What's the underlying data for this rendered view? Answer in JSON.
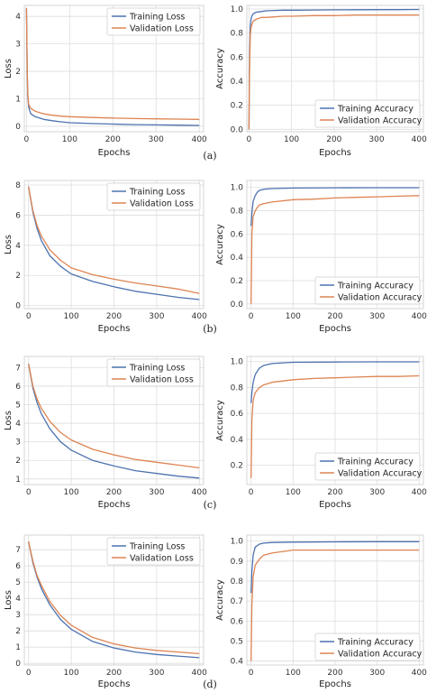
{
  "colors": {
    "training": "#4C72B0",
    "validation": "#DD8452",
    "grid": "#dddddd",
    "frame": "#cccccc"
  },
  "chart_data": [
    {
      "type": "line",
      "panel": "(a)",
      "metric": "loss",
      "xlabel": "Epochs",
      "ylabel": "Loss",
      "xlim": [
        -5,
        410
      ],
      "ylim": [
        -0.2,
        4.4
      ],
      "xticks": [
        0,
        100,
        200,
        300,
        400
      ],
      "yticks": [
        0,
        1,
        2,
        3,
        4
      ],
      "legend_loc": "top-right",
      "series": [
        {
          "name": "Training Loss",
          "x": [
            0,
            1,
            2,
            3,
            5,
            8,
            10,
            15,
            20,
            30,
            40,
            60,
            80,
            100,
            150,
            200,
            250,
            300,
            350,
            400
          ],
          "y": [
            4.3,
            2.8,
            1.7,
            1.1,
            0.7,
            0.55,
            0.45,
            0.4,
            0.35,
            0.3,
            0.25,
            0.2,
            0.16,
            0.13,
            0.1,
            0.08,
            0.06,
            0.05,
            0.04,
            0.03
          ]
        },
        {
          "name": "Validation Loss",
          "x": [
            0,
            1,
            2,
            3,
            5,
            8,
            10,
            15,
            20,
            30,
            40,
            60,
            80,
            100,
            150,
            200,
            250,
            300,
            350,
            400
          ],
          "y": [
            4.3,
            2.9,
            1.8,
            1.2,
            0.8,
            0.7,
            0.65,
            0.6,
            0.55,
            0.5,
            0.45,
            0.4,
            0.37,
            0.35,
            0.32,
            0.3,
            0.28,
            0.27,
            0.26,
            0.25
          ]
        }
      ]
    },
    {
      "type": "line",
      "panel": "(a)",
      "metric": "accuracy",
      "xlabel": "Epochs",
      "ylabel": "Accuracy",
      "xlim": [
        -5,
        410
      ],
      "ylim": [
        -0.02,
        1.03
      ],
      "xticks": [
        0,
        100,
        200,
        300,
        400
      ],
      "yticks": [
        0.0,
        0.2,
        0.4,
        0.6,
        0.8,
        1.0
      ],
      "legend_loc": "bottom-right",
      "series": [
        {
          "name": "Training Accuracy",
          "x": [
            0,
            1,
            2,
            3,
            5,
            8,
            10,
            15,
            20,
            30,
            40,
            60,
            80,
            100,
            150,
            200,
            250,
            300,
            350,
            400
          ],
          "y": [
            0.0,
            0.45,
            0.7,
            0.85,
            0.92,
            0.95,
            0.96,
            0.97,
            0.975,
            0.98,
            0.985,
            0.988,
            0.99,
            0.99,
            0.992,
            0.993,
            0.994,
            0.995,
            0.995,
            0.996
          ]
        },
        {
          "name": "Validation Accuracy",
          "x": [
            0,
            1,
            2,
            3,
            5,
            8,
            10,
            15,
            20,
            30,
            40,
            60,
            80,
            100,
            150,
            200,
            250,
            300,
            350,
            400
          ],
          "y": [
            0.0,
            0.4,
            0.6,
            0.78,
            0.85,
            0.88,
            0.9,
            0.91,
            0.92,
            0.93,
            0.93,
            0.935,
            0.94,
            0.94,
            0.945,
            0.945,
            0.95,
            0.95,
            0.95,
            0.95
          ]
        }
      ]
    },
    {
      "type": "line",
      "panel": "(b)",
      "metric": "loss",
      "xlabel": "Epochs",
      "ylabel": "Loss",
      "xlim": [
        -10,
        410
      ],
      "ylim": [
        -0.2,
        8.3
      ],
      "xticks": [
        0,
        100,
        200,
        300,
        400
      ],
      "yticks": [
        0,
        2,
        4,
        6,
        8
      ],
      "legend_loc": "top-right",
      "series": [
        {
          "name": "Training Loss",
          "x": [
            0,
            10,
            20,
            30,
            50,
            75,
            100,
            150,
            200,
            250,
            300,
            350,
            400
          ],
          "y": [
            7.9,
            6.2,
            5.1,
            4.3,
            3.3,
            2.6,
            2.1,
            1.6,
            1.25,
            0.95,
            0.75,
            0.55,
            0.4
          ]
        },
        {
          "name": "Validation Loss",
          "x": [
            0,
            10,
            20,
            30,
            50,
            75,
            100,
            150,
            200,
            250,
            300,
            350,
            400
          ],
          "y": [
            7.9,
            6.3,
            5.3,
            4.6,
            3.7,
            3.0,
            2.5,
            2.05,
            1.75,
            1.5,
            1.3,
            1.1,
            0.8
          ]
        }
      ]
    },
    {
      "type": "line",
      "panel": "(b)",
      "metric": "accuracy",
      "xlabel": "Epochs",
      "ylabel": "Accuracy",
      "xlim": [
        -10,
        410
      ],
      "ylim": [
        -0.04,
        1.06
      ],
      "xticks": [
        0,
        100,
        200,
        300,
        400
      ],
      "yticks": [
        0.0,
        0.2,
        0.4,
        0.6,
        0.8,
        1.0
      ],
      "legend_loc": "bottom-right",
      "series": [
        {
          "name": "Training Accuracy",
          "x": [
            0,
            2,
            5,
            10,
            15,
            20,
            30,
            50,
            100,
            200,
            300,
            400
          ],
          "y": [
            0.67,
            0.78,
            0.88,
            0.93,
            0.96,
            0.975,
            0.985,
            0.99,
            0.995,
            0.997,
            0.998,
            0.998
          ]
        },
        {
          "name": "Validation Accuracy",
          "x": [
            0,
            2,
            5,
            10,
            15,
            20,
            30,
            50,
            100,
            150,
            200,
            250,
            300,
            350,
            400
          ],
          "y": [
            0.0,
            0.6,
            0.75,
            0.8,
            0.83,
            0.85,
            0.86,
            0.875,
            0.895,
            0.9,
            0.91,
            0.915,
            0.92,
            0.925,
            0.93
          ]
        }
      ]
    },
    {
      "type": "line",
      "panel": "(c)",
      "metric": "loss",
      "xlabel": "Epochs",
      "ylabel": "Loss",
      "xlim": [
        -10,
        410
      ],
      "ylim": [
        0.7,
        7.6
      ],
      "xticks": [
        0,
        100,
        200,
        300,
        400
      ],
      "yticks": [
        1,
        2,
        3,
        4,
        5,
        6,
        7
      ],
      "legend_loc": "top-right",
      "series": [
        {
          "name": "Training Loss",
          "x": [
            0,
            10,
            20,
            30,
            50,
            75,
            100,
            150,
            200,
            250,
            300,
            350,
            400
          ],
          "y": [
            7.2,
            5.9,
            5.1,
            4.5,
            3.7,
            3.0,
            2.55,
            2.0,
            1.7,
            1.45,
            1.3,
            1.15,
            1.05
          ]
        },
        {
          "name": "Validation Loss",
          "x": [
            0,
            10,
            20,
            30,
            50,
            75,
            100,
            150,
            200,
            250,
            300,
            350,
            400
          ],
          "y": [
            7.2,
            6.0,
            5.3,
            4.8,
            4.1,
            3.5,
            3.1,
            2.6,
            2.3,
            2.05,
            1.9,
            1.75,
            1.6
          ]
        }
      ]
    },
    {
      "type": "line",
      "panel": "(c)",
      "metric": "accuracy",
      "xlabel": "Epochs",
      "ylabel": "Accuracy",
      "xlim": [
        -10,
        410
      ],
      "ylim": [
        0.05,
        1.04
      ],
      "xticks": [
        0,
        100,
        200,
        300,
        400
      ],
      "yticks": [
        0.2,
        0.4,
        0.6,
        0.8,
        1.0
      ],
      "legend_loc": "bottom-right",
      "series": [
        {
          "name": "Training Accuracy",
          "x": [
            0,
            2,
            5,
            10,
            20,
            30,
            50,
            100,
            200,
            300,
            400
          ],
          "y": [
            0.68,
            0.76,
            0.84,
            0.9,
            0.95,
            0.97,
            0.985,
            0.995,
            0.997,
            0.998,
            0.998
          ]
        },
        {
          "name": "Validation Accuracy",
          "x": [
            0,
            2,
            5,
            10,
            20,
            30,
            50,
            100,
            150,
            200,
            250,
            300,
            350,
            400
          ],
          "y": [
            0.1,
            0.55,
            0.7,
            0.76,
            0.8,
            0.82,
            0.84,
            0.86,
            0.87,
            0.875,
            0.88,
            0.885,
            0.885,
            0.89
          ]
        }
      ]
    },
    {
      "type": "line",
      "panel": "(d)",
      "metric": "loss",
      "xlabel": "Epochs",
      "ylabel": "Loss",
      "xlim": [
        -10,
        410
      ],
      "ylim": [
        -0.1,
        7.9
      ],
      "xticks": [
        0,
        100,
        200,
        300,
        400
      ],
      "yticks": [
        0,
        1,
        2,
        3,
        4,
        5,
        6,
        7
      ],
      "legend_loc": "top-right",
      "series": [
        {
          "name": "Training Loss",
          "x": [
            0,
            10,
            20,
            30,
            50,
            75,
            100,
            150,
            200,
            250,
            300,
            350,
            400
          ],
          "y": [
            7.5,
            6.2,
            5.3,
            4.6,
            3.6,
            2.7,
            2.1,
            1.35,
            0.95,
            0.7,
            0.55,
            0.45,
            0.35
          ]
        },
        {
          "name": "Validation Loss",
          "x": [
            0,
            10,
            20,
            30,
            50,
            75,
            100,
            150,
            200,
            250,
            300,
            350,
            400
          ],
          "y": [
            7.5,
            6.3,
            5.4,
            4.8,
            3.8,
            2.95,
            2.35,
            1.6,
            1.2,
            0.95,
            0.8,
            0.7,
            0.6
          ]
        }
      ]
    },
    {
      "type": "line",
      "panel": "(d)",
      "metric": "accuracy",
      "xlabel": "Epochs",
      "ylabel": "Accuracy",
      "xlim": [
        -10,
        410
      ],
      "ylim": [
        0.38,
        1.03
      ],
      "xticks": [
        0,
        100,
        200,
        300,
        400
      ],
      "yticks": [
        0.4,
        0.5,
        0.6,
        0.7,
        0.8,
        0.9,
        1.0
      ],
      "legend_loc": "bottom-right",
      "series": [
        {
          "name": "Training Accuracy",
          "x": [
            0,
            2,
            5,
            10,
            20,
            30,
            50,
            100,
            200,
            300,
            400
          ],
          "y": [
            0.74,
            0.85,
            0.93,
            0.97,
            0.985,
            0.99,
            0.993,
            0.995,
            0.996,
            0.997,
            0.997
          ]
        },
        {
          "name": "Validation Accuracy",
          "x": [
            0,
            2,
            5,
            10,
            20,
            30,
            50,
            100,
            150,
            200,
            250,
            300,
            350,
            400
          ],
          "y": [
            0.4,
            0.68,
            0.82,
            0.88,
            0.91,
            0.93,
            0.94,
            0.955,
            0.955,
            0.955,
            0.955,
            0.955,
            0.955,
            0.955
          ]
        }
      ]
    }
  ]
}
